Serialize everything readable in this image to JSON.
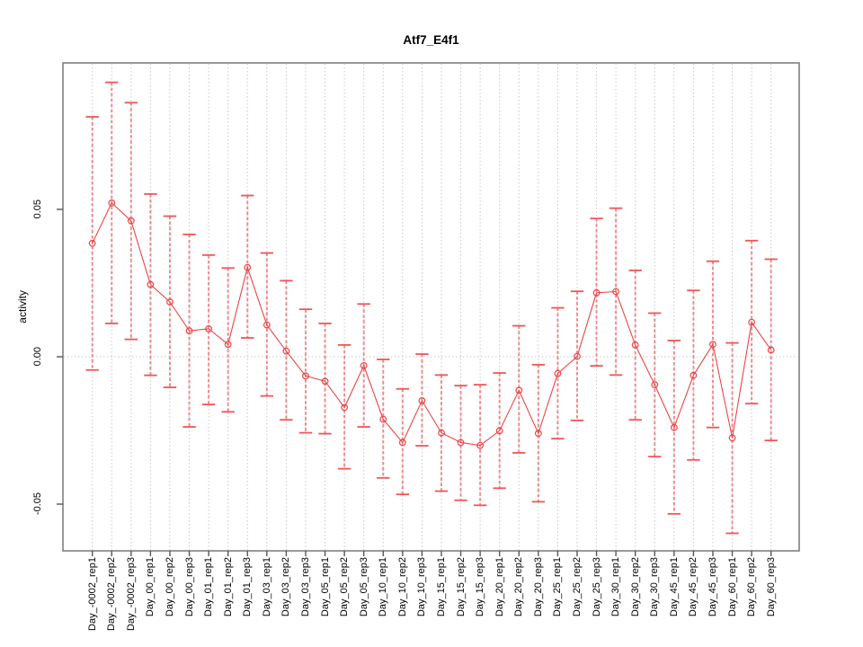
{
  "figure": {
    "title": "Atf7_E4f1",
    "ylabel": "activity",
    "background": "#ffffff"
  },
  "colors": {
    "point": "#ee4444",
    "series_line": "#ee4444",
    "error_stem": "#f06060",
    "error_cap": "#f05555",
    "gridline": "#c9c9c9",
    "axis_box": "#777777",
    "tick": "#555555",
    "label_text": "#000000"
  },
  "y_axis": {
    "tick_labels": [
      "0.05",
      "0.00",
      "-0.05"
    ],
    "tick_values": [
      0.05,
      0.0,
      -0.05
    ]
  },
  "chart_data": {
    "type": "line",
    "title": "Atf7_E4f1",
    "xlabel": "",
    "ylabel": "activity",
    "ylim": [
      -0.066,
      0.0997
    ],
    "grid": "dotted gray vertical line at every category; dotted gray horizontal line at y=0",
    "legend": "none",
    "marker": "open-circle",
    "error_bars": true,
    "categories": [
      "Day_-0002_rep1",
      "Day_-0002_rep2",
      "Day_-0002_rep3",
      "Day_00_rep1",
      "Day_00_rep2",
      "Day_00_rep3",
      "Day_01_rep1",
      "Day_01_rep2",
      "Day_01_rep3",
      "Day_03_rep1",
      "Day_03_rep2",
      "Day_03_rep3",
      "Day_05_rep1",
      "Day_05_rep2",
      "Day_05_rep3",
      "Day_10_rep1",
      "Day_10_rep2",
      "Day_10_rep3",
      "Day_15_rep1",
      "Day_15_rep2",
      "Day_15_rep3",
      "Day_20_rep1",
      "Day_20_rep2",
      "Day_20_rep3",
      "Day_25_rep1",
      "Day_25_rep2",
      "Day_25_rep3",
      "Day_30_rep1",
      "Day_30_rep2",
      "Day_30_rep3",
      "Day_45_rep1",
      "Day_45_rep2",
      "Day_45_rep3",
      "Day_60_rep1",
      "Day_60_rep2",
      "Day_60_rep3"
    ],
    "series": [
      {
        "name": "activity",
        "values": [
          0.0385,
          0.0522,
          0.0461,
          0.0245,
          0.0186,
          0.0088,
          0.0095,
          0.0042,
          0.0303,
          0.0108,
          0.0019,
          -0.0065,
          -0.0083,
          -0.0172,
          -0.003,
          -0.0212,
          -0.0291,
          -0.0149,
          -0.0258,
          -0.0291,
          -0.0301,
          -0.0251,
          -0.0114,
          -0.026,
          -0.0057,
          0.0001,
          0.0217,
          0.0221,
          0.004,
          -0.0095,
          -0.024,
          -0.0063,
          0.0042,
          -0.0275,
          0.0117,
          0.0023
        ]
      }
    ],
    "error_low": [
      -0.0045,
      0.0113,
      0.0059,
      -0.0063,
      -0.0104,
      -0.0238,
      -0.0162,
      -0.0187,
      0.0064,
      -0.0133,
      -0.0214,
      -0.0258,
      -0.0261,
      -0.038,
      -0.0238,
      -0.0411,
      -0.0467,
      -0.0302,
      -0.0456,
      -0.0487,
      -0.0504,
      -0.0446,
      -0.0326,
      -0.0492,
      -0.0278,
      -0.0216,
      -0.0031,
      -0.0062,
      -0.0214,
      -0.0339,
      -0.0533,
      -0.035,
      -0.024,
      -0.0599,
      -0.0159,
      -0.0284
    ],
    "error_high": [
      0.0814,
      0.0931,
      0.0862,
      0.0552,
      0.0477,
      0.0415,
      0.0345,
      0.0301,
      0.0547,
      0.0352,
      0.0258,
      0.0161,
      0.0113,
      0.004,
      0.0179,
      -0.0009,
      -0.0109,
      0.0009,
      -0.0062,
      -0.0098,
      -0.0095,
      -0.0055,
      0.0105,
      -0.0027,
      0.0166,
      0.0222,
      0.0469,
      0.0504,
      0.0293,
      0.0148,
      0.0055,
      0.0225,
      0.0324,
      0.0047,
      0.0394,
      0.0331
    ]
  }
}
